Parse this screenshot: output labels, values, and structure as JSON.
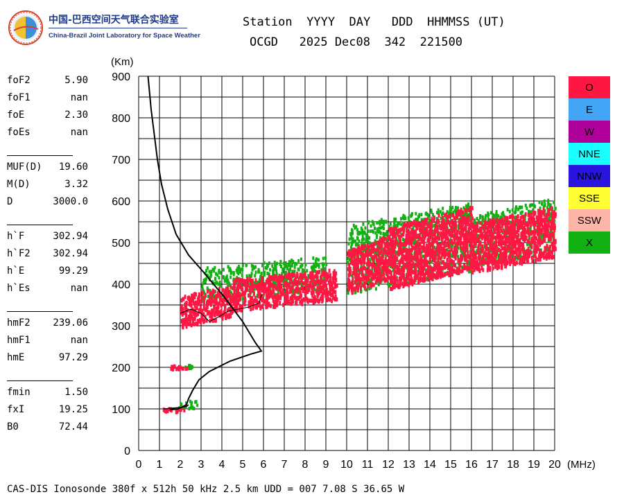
{
  "logo": {
    "title": "中国-巴西空间天气联合实验室",
    "subtitle": "China-Brazil Joint Laboratory for Space Weather"
  },
  "header": {
    "row1": "Station  YYYY  DAY   DDD  HHMMSS (UT)",
    "row2": "OCGD   2025 Dec08  342  221500"
  },
  "params": {
    "group1": [
      {
        "label": "foF2",
        "value": "5.90"
      },
      {
        "label": "foF1",
        "value": "nan"
      },
      {
        "label": "foE",
        "value": "2.30"
      },
      {
        "label": "foEs",
        "value": "nan"
      }
    ],
    "group2": [
      {
        "label": "MUF(D)",
        "value": "19.60"
      },
      {
        "label": "M(D)",
        "value": "3.32"
      },
      {
        "label": "D",
        "value": "3000.0"
      }
    ],
    "group3": [
      {
        "label": "h`F",
        "value": "302.94"
      },
      {
        "label": "h`F2",
        "value": "302.94"
      },
      {
        "label": "h`E",
        "value": "99.29"
      },
      {
        "label": "h`Es",
        "value": "nan"
      }
    ],
    "group4": [
      {
        "label": "hmF2",
        "value": "239.06"
      },
      {
        "label": "hmF1",
        "value": "nan"
      },
      {
        "label": "hmE",
        "value": "97.29"
      }
    ],
    "group5": [
      {
        "label": "fmin",
        "value": "1.50"
      },
      {
        "label": "fxI",
        "value": "19.25"
      },
      {
        "label": "B0",
        "value": "72.44"
      }
    ]
  },
  "footer": "CAS-DIS Ionosonde 380f x 512h 50 kHz 2.5 km UDD = 007 7.08 S 36.65 W",
  "legend": [
    {
      "label": "O",
      "color": "#ff1744"
    },
    {
      "label": "E",
      "color": "#42a5f5"
    },
    {
      "label": "W",
      "color": "#b0009a"
    },
    {
      "label": "NNE",
      "color": "#1affff"
    },
    {
      "label": "NNW",
      "color": "#2a14e0"
    },
    {
      "label": "SSE",
      "color": "#ffff33"
    },
    {
      "label": "SSW",
      "color": "#ffb4a8"
    },
    {
      "label": "X",
      "color": "#13b013"
    }
  ],
  "chart_data": {
    "type": "scatter",
    "xlabel": "(MHz)",
    "ylabel": "(Km)",
    "xlim": [
      0,
      20
    ],
    "ylim": [
      0,
      900
    ],
    "x_ticks": [
      0,
      1,
      2,
      3,
      4,
      5,
      6,
      7,
      8,
      9,
      10,
      11,
      12,
      13,
      14,
      15,
      16,
      17,
      18,
      19,
      20
    ],
    "y_ticks": [
      0,
      100,
      200,
      300,
      400,
      500,
      600,
      700,
      800,
      900
    ],
    "grid": true,
    "series": [
      {
        "name": "O",
        "color": "#ff1744",
        "regions": [
          {
            "x": [
              1.1,
              2.2
            ],
            "y": [
              95,
              108
            ]
          },
          {
            "x": [
              1.5,
              2.3
            ],
            "y": [
              198,
              210
            ]
          },
          {
            "x": [
              2.0,
              4.5
            ],
            "y": [
              300,
              400
            ]
          },
          {
            "x": [
              4.5,
              9.5
            ],
            "y": [
              340,
              440
            ]
          },
          {
            "x": [
              10.0,
              12.0
            ],
            "y": [
              380,
              520
            ]
          },
          {
            "x": [
              12.0,
              16.0
            ],
            "y": [
              390,
              590
            ]
          },
          {
            "x": [
              16.0,
              20.0
            ],
            "y": [
              430,
              590
            ]
          }
        ]
      },
      {
        "name": "X",
        "color": "#13b013",
        "regions": [
          {
            "x": [
              1.8,
              2.8
            ],
            "y": [
              95,
              125
            ]
          },
          {
            "x": [
              2.2,
              2.6
            ],
            "y": [
              200,
              210
            ]
          },
          {
            "x": [
              3.0,
              9.0
            ],
            "y": [
              360,
              470
            ]
          },
          {
            "x": [
              10.0,
              16.0
            ],
            "y": [
              380,
              600
            ]
          },
          {
            "x": [
              16.0,
              20.0
            ],
            "y": [
              440,
              610
            ]
          }
        ]
      }
    ],
    "profile": {
      "name": "electron density profile",
      "color": "#000000",
      "points": [
        [
          0.45,
          900
        ],
        [
          0.6,
          820
        ],
        [
          0.75,
          760
        ],
        [
          0.9,
          700
        ],
        [
          1.1,
          640
        ],
        [
          1.4,
          580
        ],
        [
          1.8,
          520
        ],
        [
          2.4,
          470
        ],
        [
          3.1,
          430
        ],
        [
          4.1,
          370
        ],
        [
          5.0,
          310
        ],
        [
          5.6,
          260
        ],
        [
          5.9,
          239
        ],
        [
          5.4,
          232
        ],
        [
          4.4,
          215
        ],
        [
          3.4,
          190
        ],
        [
          2.9,
          170
        ],
        [
          2.6,
          145
        ],
        [
          2.4,
          125
        ],
        [
          2.3,
          110
        ],
        [
          1.9,
          100
        ],
        [
          1.5,
          98
        ]
      ]
    },
    "virtual_trace": {
      "color": "#000000",
      "points": [
        [
          2.0,
          330
        ],
        [
          2.5,
          340
        ],
        [
          3.0,
          330
        ],
        [
          3.4,
          310
        ],
        [
          3.8,
          320
        ],
        [
          4.3,
          335
        ],
        [
          4.8,
          340
        ],
        [
          5.3,
          345
        ],
        [
          5.8,
          355
        ],
        [
          5.9,
          375
        ]
      ]
    },
    "e_trace": {
      "color": "#000000",
      "points": [
        [
          1.2,
          100
        ],
        [
          1.7,
          102
        ],
        [
          2.1,
          104
        ],
        [
          2.3,
          106
        ],
        [
          2.4,
          110
        ]
      ]
    }
  }
}
